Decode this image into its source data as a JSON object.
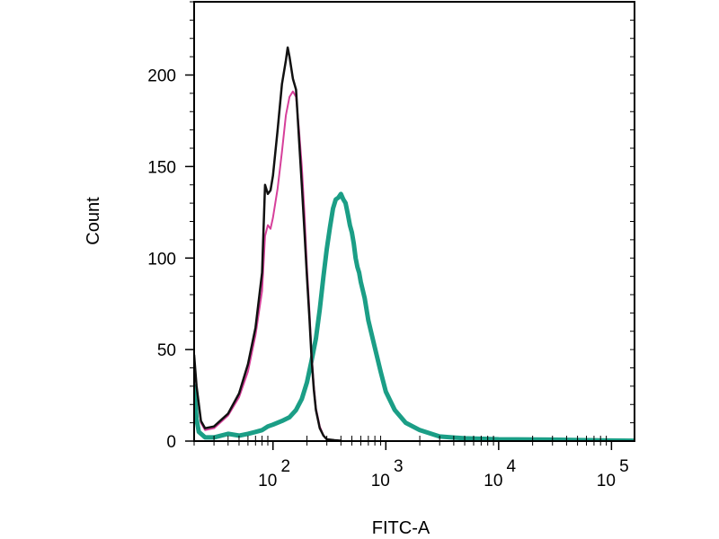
{
  "chart_data": {
    "type": "line",
    "title": "",
    "xlabel": "FITC-A",
    "ylabel": "Count",
    "x_scale": "log",
    "xlim": [
      20,
      160000
    ],
    "ylim": [
      0,
      240
    ],
    "x_ticks": [
      {
        "value": 100,
        "base": "10",
        "exp": "2"
      },
      {
        "value": 1000,
        "base": "10",
        "exp": "3"
      },
      {
        "value": 10000,
        "base": "10",
        "exp": "4"
      },
      {
        "value": 100000,
        "base": "10",
        "exp": "5"
      }
    ],
    "y_ticks": [
      {
        "value": 0,
        "label": "0"
      },
      {
        "value": 50,
        "label": "50"
      },
      {
        "value": 100,
        "label": "100"
      },
      {
        "value": 150,
        "label": "150"
      },
      {
        "value": 200,
        "label": "200"
      }
    ],
    "grid": false,
    "legend": "none",
    "series": [
      {
        "color": "#1b9e86",
        "width": 5,
        "points": [
          [
            20,
            30
          ],
          [
            21,
            12
          ],
          [
            22,
            5
          ],
          [
            25,
            2
          ],
          [
            30,
            2
          ],
          [
            40,
            4
          ],
          [
            50,
            3
          ],
          [
            60,
            4
          ],
          [
            70,
            5
          ],
          [
            80,
            6
          ],
          [
            90,
            8
          ],
          [
            100,
            9
          ],
          [
            120,
            11
          ],
          [
            140,
            13
          ],
          [
            160,
            17
          ],
          [
            180,
            23
          ],
          [
            200,
            32
          ],
          [
            220,
            44
          ],
          [
            240,
            56
          ],
          [
            260,
            72
          ],
          [
            280,
            90
          ],
          [
            300,
            105
          ],
          [
            320,
            117
          ],
          [
            340,
            127
          ],
          [
            360,
            132
          ],
          [
            380,
            133
          ],
          [
            400,
            135
          ],
          [
            420,
            132
          ],
          [
            440,
            130
          ],
          [
            460,
            124
          ],
          [
            480,
            118
          ],
          [
            500,
            114
          ],
          [
            520,
            108
          ],
          [
            540,
            100
          ],
          [
            560,
            95
          ],
          [
            580,
            92
          ],
          [
            600,
            87
          ],
          [
            650,
            78
          ],
          [
            700,
            66
          ],
          [
            800,
            51
          ],
          [
            900,
            38
          ],
          [
            1000,
            27
          ],
          [
            1200,
            17
          ],
          [
            1500,
            10
          ],
          [
            2000,
            6
          ],
          [
            3000,
            2.5
          ],
          [
            5000,
            1.5
          ],
          [
            10000,
            1
          ],
          [
            30000,
            0.8
          ],
          [
            60000,
            0.5
          ],
          [
            100000,
            0.3
          ],
          [
            160000,
            0.2
          ]
        ]
      },
      {
        "color": "#d63f9a",
        "width": 2,
        "points": [
          [
            20,
            45
          ],
          [
            21,
            30
          ],
          [
            23,
            10
          ],
          [
            25,
            6
          ],
          [
            30,
            7
          ],
          [
            40,
            14
          ],
          [
            50,
            24
          ],
          [
            60,
            38
          ],
          [
            70,
            58
          ],
          [
            80,
            82
          ],
          [
            85,
            112
          ],
          [
            90,
            118
          ],
          [
            95,
            116
          ],
          [
            100,
            122
          ],
          [
            110,
            138
          ],
          [
            120,
            158
          ],
          [
            130,
            178
          ],
          [
            140,
            188
          ],
          [
            150,
            191
          ],
          [
            160,
            188
          ],
          [
            170,
            170
          ],
          [
            180,
            150
          ],
          [
            190,
            125
          ],
          [
            200,
            95
          ],
          [
            210,
            72
          ],
          [
            220,
            48
          ],
          [
            230,
            30
          ],
          [
            240,
            18
          ],
          [
            260,
            8
          ],
          [
            280,
            3
          ],
          [
            300,
            1
          ],
          [
            350,
            0.5
          ],
          [
            400,
            0.2
          ]
        ]
      },
      {
        "color": "#111111",
        "width": 2.5,
        "points": [
          [
            20,
            47
          ],
          [
            21,
            30
          ],
          [
            23,
            11
          ],
          [
            25,
            7
          ],
          [
            30,
            8
          ],
          [
            40,
            15
          ],
          [
            50,
            26
          ],
          [
            60,
            42
          ],
          [
            70,
            62
          ],
          [
            80,
            92
          ],
          [
            85,
            140
          ],
          [
            90,
            135
          ],
          [
            95,
            137
          ],
          [
            100,
            145
          ],
          [
            110,
            170
          ],
          [
            120,
            195
          ],
          [
            130,
            208
          ],
          [
            135,
            215
          ],
          [
            140,
            210
          ],
          [
            150,
            198
          ],
          [
            160,
            192
          ],
          [
            170,
            165
          ],
          [
            180,
            140
          ],
          [
            190,
            115
          ],
          [
            200,
            90
          ],
          [
            210,
            68
          ],
          [
            220,
            45
          ],
          [
            230,
            28
          ],
          [
            240,
            17
          ],
          [
            260,
            7
          ],
          [
            280,
            3
          ],
          [
            300,
            1
          ],
          [
            350,
            0.5
          ],
          [
            400,
            0.2
          ]
        ]
      }
    ]
  }
}
